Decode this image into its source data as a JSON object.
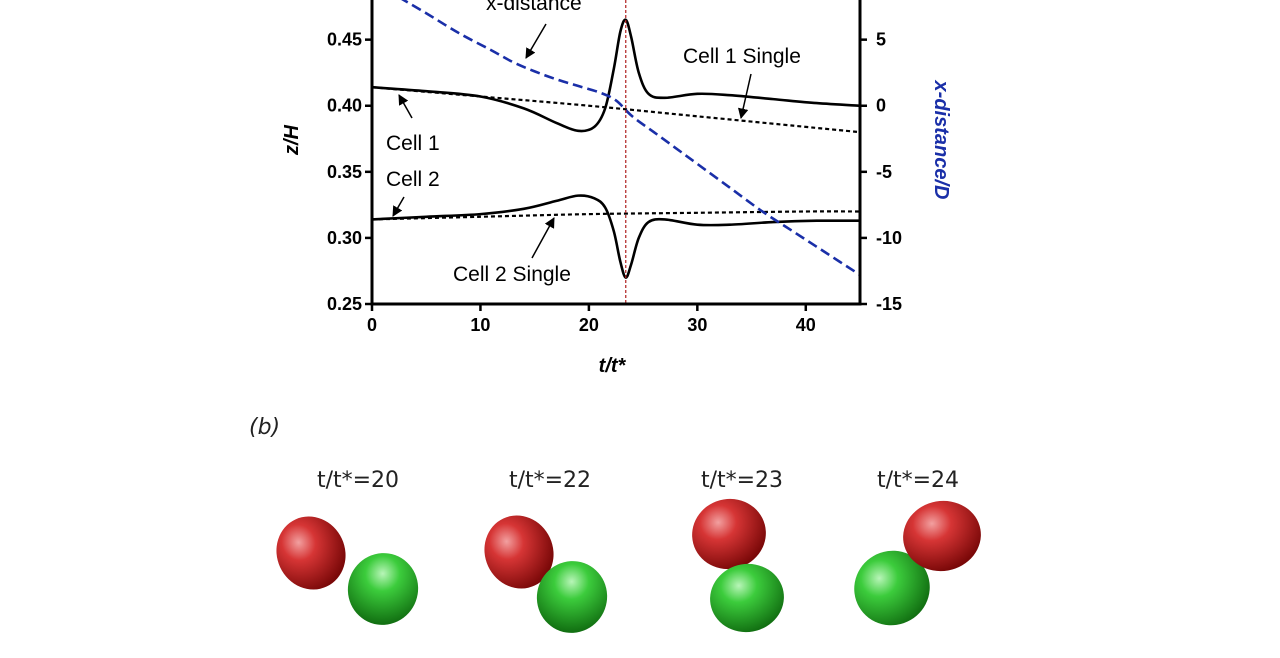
{
  "chart_data": {
    "type": "line",
    "xlabel": "t/t*",
    "ylabel": "z/H",
    "y2label": "x-distance/D",
    "xlim": [
      0,
      45
    ],
    "ylim": [
      0.25,
      0.48
    ],
    "y2lim": [
      -15,
      8
    ],
    "xticks": [
      0,
      10,
      20,
      30,
      40
    ],
    "yticks": [
      0.25,
      0.3,
      0.35,
      0.4,
      0.45
    ],
    "y2ticks": [
      -15,
      -10,
      -5,
      0,
      5
    ],
    "collision_time": 23.4,
    "series": [
      {
        "key": "cell1",
        "axis": "left",
        "style": "solid",
        "color": "#000000",
        "x": [
          0,
          5,
          10,
          14,
          17,
          19,
          20.5,
          21.5,
          22.3,
          22.9,
          23.4,
          23.9,
          24.6,
          25.5,
          27,
          30,
          33,
          37,
          41,
          45
        ],
        "y": [
          0.414,
          0.411,
          0.407,
          0.398,
          0.387,
          0.381,
          0.384,
          0.398,
          0.428,
          0.456,
          0.465,
          0.452,
          0.425,
          0.409,
          0.406,
          0.409,
          0.408,
          0.405,
          0.402,
          0.4
        ]
      },
      {
        "key": "cell1_single",
        "name": "Cell 1 Single",
        "axis": "left",
        "style": "dashed",
        "color": "#000000",
        "x": [
          0,
          10,
          20,
          30,
          40,
          45
        ],
        "y": [
          0.414,
          0.407,
          0.4,
          0.392,
          0.384,
          0.38
        ]
      },
      {
        "key": "cell2",
        "axis": "left",
        "style": "solid",
        "color": "#000000",
        "x": [
          0,
          5,
          10,
          14,
          17,
          19,
          20.5,
          21.5,
          22.3,
          22.9,
          23.4,
          23.9,
          24.6,
          25.5,
          27,
          30,
          33,
          37,
          41,
          45
        ],
        "y": [
          0.314,
          0.316,
          0.318,
          0.322,
          0.328,
          0.332,
          0.33,
          0.323,
          0.305,
          0.282,
          0.27,
          0.28,
          0.3,
          0.312,
          0.314,
          0.31,
          0.31,
          0.312,
          0.313,
          0.313
        ]
      },
      {
        "key": "cell2_single",
        "name": "Cell 2 Single",
        "axis": "left",
        "style": "dashed",
        "color": "#000000",
        "x": [
          0,
          10,
          20,
          30,
          40,
          45
        ],
        "y": [
          0.314,
          0.316,
          0.318,
          0.319,
          0.32,
          0.32
        ]
      },
      {
        "key": "xdist",
        "name": "x-distance",
        "axis": "right",
        "style": "dashed",
        "color": "#1a2fa8",
        "x": [
          2.5,
          5,
          8,
          11,
          13,
          15,
          17,
          19,
          21,
          22.5,
          24,
          26,
          28,
          30,
          33,
          36,
          39,
          42,
          45
        ],
        "y": [
          8.2,
          7.0,
          5.5,
          4.2,
          3.3,
          2.6,
          2.0,
          1.5,
          1.0,
          0.4,
          -0.8,
          -2.0,
          -3.2,
          -4.4,
          -6.2,
          -8.0,
          -9.6,
          -11.2,
          -12.8
        ]
      }
    ],
    "annotations": [
      {
        "key": "xdist_label",
        "text": "x-distance"
      },
      {
        "key": "cell1_single_label",
        "text": "Cell 1 Single"
      },
      {
        "key": "cell1_label",
        "text": "Cell 1"
      },
      {
        "key": "cell2_label",
        "text": "Cell 2"
      },
      {
        "key": "cell2_single_label",
        "text": "Cell 2 Single"
      }
    ]
  },
  "panel_b": {
    "label": "(b)",
    "snapshots": [
      {
        "time_label": "t/t*=20"
      },
      {
        "time_label": "t/t*=22"
      },
      {
        "time_label": "t/t*=23"
      },
      {
        "time_label": "t/t*=24"
      }
    ],
    "colors": {
      "cell_red": "#c61d1d",
      "cell_green": "#2cb52c"
    }
  }
}
